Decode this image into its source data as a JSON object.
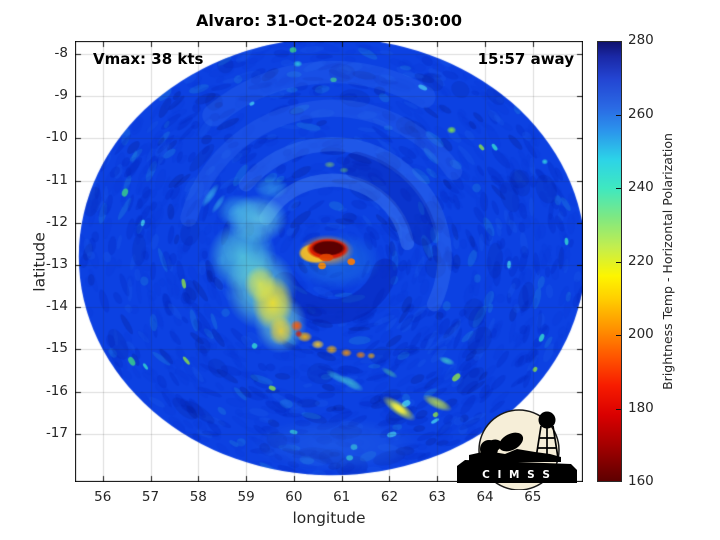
{
  "title": "Alvaro: 31-Oct-2024 05:30:00",
  "annotations": {
    "vmax": "Vmax: 38 kts",
    "time_away": "15:57 away"
  },
  "axes": {
    "xlabel": "longitude",
    "ylabel": "latitude",
    "xticks": [
      56,
      57,
      58,
      59,
      60,
      61,
      62,
      63,
      64,
      65
    ],
    "yticks": [
      -8,
      -9,
      -10,
      -11,
      -12,
      -13,
      -14,
      -15,
      -16,
      -17
    ],
    "xlim": [
      55.42,
      66.05
    ],
    "ylim": [
      -18.14,
      -7.69
    ],
    "grid": true
  },
  "colorbar": {
    "label": "Brightness Temp - Horizontal Polarization",
    "ticks": [
      160,
      180,
      200,
      220,
      240,
      260,
      280
    ],
    "min": 160,
    "max": 280,
    "stops": [
      [
        160,
        "#5e0000"
      ],
      [
        170,
        "#a50000"
      ],
      [
        178,
        "#d90000"
      ],
      [
        186,
        "#f71c00"
      ],
      [
        194,
        "#ff5500"
      ],
      [
        202,
        "#ff9400"
      ],
      [
        210,
        "#ffd000"
      ],
      [
        216,
        "#fdf500"
      ],
      [
        224,
        "#c3ee4e"
      ],
      [
        232,
        "#7fe882"
      ],
      [
        240,
        "#3fe8c0"
      ],
      [
        248,
        "#2cd3e8"
      ],
      [
        256,
        "#2b92ec"
      ],
      [
        262,
        "#2a6ae4"
      ],
      [
        270,
        "#2344d2"
      ],
      [
        276,
        "#1a28a6"
      ],
      [
        280,
        "#10126e"
      ]
    ]
  },
  "logo": {
    "text": "C I M S S"
  },
  "chart_data": {
    "type": "heatmap",
    "title": "Alvaro: 31-Oct-2024 05:30:00",
    "storm_name": "Alvaro",
    "vmax_kts": 38,
    "time_offset_label": "15:57 away",
    "xlabel": "longitude",
    "ylabel": "latitude",
    "colorbar_label": "Brightness Temp - Horizontal Polarization",
    "value_range": [
      160,
      280
    ],
    "legend_position": "right-colorbar",
    "grid": true,
    "swath": {
      "center_lon": 60.8,
      "center_lat": -12.8,
      "rx_deg": 5.3,
      "ry_deg": 5.18,
      "base_color": "#0c41e2",
      "base_tb": 262
    },
    "noise": {
      "seed": 7,
      "count": 1500,
      "bright_count": 26,
      "dark_blob_count": 45
    },
    "arcs": [
      {
        "r": 1.7,
        "w": 0.3,
        "a0": -150,
        "a1": -10,
        "c": "#508cf6",
        "a": 0.4
      },
      {
        "r": 2.5,
        "w": 0.32,
        "a0": -140,
        "a1": 25,
        "c": "#4682f4",
        "a": 0.35
      },
      {
        "r": 3.3,
        "w": 0.38,
        "a0": -165,
        "a1": -35,
        "c": "#3c78f0",
        "a": 0.28
      },
      {
        "r": 1.22,
        "w": 0.55,
        "a0": 15,
        "a1": 150,
        "c": "#0620b0",
        "a": 0.45
      },
      {
        "r": 2.1,
        "w": 0.6,
        "a0": -75,
        "a1": -15,
        "c": "#051ca0",
        "a": 0.3
      },
      {
        "r": 4.1,
        "w": 0.5,
        "a0": -130,
        "a1": -60,
        "c": "#4682f4",
        "a": 0.22
      }
    ],
    "blobs": [
      {
        "lon": 59.23,
        "lat": -11.91,
        "rx": 0.65,
        "ry": 0.58,
        "c": "#74e6e0",
        "a": 0.7,
        "tb": 235
      },
      {
        "lon": 58.92,
        "lat": -12.79,
        "rx": 0.72,
        "ry": 0.82,
        "c": "#62e2dc",
        "a": 0.75,
        "tb": 235
      },
      {
        "lon": 59.31,
        "lat": -13.57,
        "rx": 0.76,
        "ry": 0.96,
        "c": "#74e6d0",
        "a": 0.75,
        "tb": 232
      },
      {
        "lon": 59.72,
        "lat": -14.38,
        "rx": 0.56,
        "ry": 0.72,
        "c": "#84e6c6",
        "a": 0.7,
        "tb": 230
      },
      {
        "lon": 58.83,
        "lat": -11.72,
        "rx": 0.46,
        "ry": 0.4,
        "c": "#55d8e8",
        "a": 0.45
      },
      {
        "lon": 59.52,
        "lat": -11.17,
        "rx": 0.36,
        "ry": 0.28,
        "c": "#55d8e8",
        "a": 0.4
      },
      {
        "lon": 60.9,
        "lat": -12.9,
        "rx": 0.95,
        "ry": 0.7,
        "c": "#2e9ae0",
        "a": 0.4
      },
      {
        "lon": 59.56,
        "lat": -13.9,
        "rx": 0.44,
        "ry": 0.64,
        "c": "#ffe41e",
        "a": 0.85,
        "tb": 208
      },
      {
        "lon": 59.3,
        "lat": -13.45,
        "rx": 0.34,
        "ry": 0.44,
        "c": "#eeea3c",
        "a": 0.75,
        "tb": 212
      },
      {
        "lon": 59.73,
        "lat": -14.56,
        "rx": 0.26,
        "ry": 0.35,
        "c": "#ffd41e",
        "a": 0.8,
        "tb": 206
      },
      {
        "lon": 60.86,
        "lat": -17.25,
        "rx": 1.8,
        "ry": 0.65,
        "c": "#2d6eea",
        "a": 0.45
      },
      {
        "lon": 60.08,
        "lat": -8.23,
        "rx": 0.1,
        "ry": 0.08,
        "c": "#35e0e0",
        "a": 0.8
      },
      {
        "lon": 58.1,
        "lat": -8.16,
        "rx": 0.09,
        "ry": 0.07,
        "c": "#35e0e0",
        "a": 0.6
      },
      {
        "lon": 63.3,
        "lat": -9.8,
        "rx": 0.1,
        "ry": 0.09,
        "c": "#8cf03c",
        "a": 0.9
      },
      {
        "lon": 65.25,
        "lat": -10.55,
        "rx": 0.07,
        "ry": 0.07,
        "c": "#3ae8e0",
        "a": 0.85
      },
      {
        "lon": 60.75,
        "lat": -10.62,
        "rx": 0.12,
        "ry": 0.08,
        "c": "#a0e84c",
        "a": 0.55
      },
      {
        "lon": 61.05,
        "lat": -10.75,
        "rx": 0.1,
        "ry": 0.07,
        "c": "#7ce060",
        "a": 0.5
      },
      {
        "lon": 60.23,
        "lat": -14.7,
        "rx": 0.16,
        "ry": 0.13,
        "c": "#ffb400",
        "a": 0.9,
        "tb": 198
      },
      {
        "lon": 60.5,
        "lat": -14.88,
        "rx": 0.14,
        "ry": 0.11,
        "c": "#ffcf26",
        "a": 0.9
      },
      {
        "lon": 60.79,
        "lat": -15.0,
        "rx": 0.13,
        "ry": 0.11,
        "c": "#ffb400",
        "a": 0.85
      },
      {
        "lon": 61.1,
        "lat": -15.08,
        "rx": 0.12,
        "ry": 0.1,
        "c": "#ff9a00",
        "a": 0.85
      },
      {
        "lon": 61.4,
        "lat": -15.13,
        "rx": 0.11,
        "ry": 0.09,
        "c": "#ff8c00",
        "a": 0.8
      },
      {
        "lon": 61.62,
        "lat": -15.15,
        "rx": 0.09,
        "ry": 0.08,
        "c": "#ffb400",
        "a": 0.75
      },
      {
        "lon": 60.06,
        "lat": -14.44,
        "rx": 0.13,
        "ry": 0.14,
        "c": "#ff5a00",
        "a": 0.95,
        "tb": 190
      },
      {
        "lon": 60.1,
        "lat": -14.63,
        "rx": 0.08,
        "ry": 0.09,
        "c": "#d42000",
        "a": 0.9
      },
      {
        "lon": 60.69,
        "lat": -12.66,
        "rx": 0.58,
        "ry": 0.38,
        "c": "#ff9c1e",
        "a": 0.92,
        "tb": 195
      }
    ],
    "streaks": [
      {
        "lon": 62.2,
        "lat": -16.4,
        "len": 0.42,
        "wid": 0.16,
        "ang": 35,
        "c": "#d8ee3e",
        "a": 0.85
      },
      {
        "lon": 62.2,
        "lat": -16.4,
        "len": 0.22,
        "wid": 0.09,
        "ang": 35,
        "c": "#fff23e",
        "a": 0.9
      },
      {
        "lon": 63.0,
        "lat": -16.27,
        "len": 0.34,
        "wid": 0.14,
        "ang": 25,
        "c": "#c8e83c",
        "a": 0.8
      },
      {
        "lon": 61.2,
        "lat": -15.8,
        "len": 0.3,
        "wid": 0.12,
        "ang": 30,
        "c": "#4ad8d2",
        "a": 0.65
      },
      {
        "lon": 60.9,
        "lat": -15.65,
        "len": 0.26,
        "wid": 0.1,
        "ang": 30,
        "c": "#45d0d8",
        "a": 0.55
      },
      {
        "lon": 63.2,
        "lat": -15.27,
        "len": 0.18,
        "wid": 0.09,
        "ang": 20,
        "c": "#49e0c8",
        "a": 0.7
      },
      {
        "lon": 62.0,
        "lat": -15.55,
        "len": 0.2,
        "wid": 0.08,
        "ang": 30,
        "c": "#55dca0",
        "a": 0.5
      },
      {
        "lon": 58.25,
        "lat": -11.35,
        "len": 0.3,
        "wid": 0.1,
        "ang": -55,
        "c": "#45c8ec",
        "a": 0.6
      },
      {
        "lon": 58.42,
        "lat": -11.55,
        "len": 0.24,
        "wid": 0.08,
        "ang": -55,
        "c": "#45c8ec",
        "a": 0.5
      }
    ],
    "cores": [
      {
        "lon": 60.45,
        "lat": -12.72,
        "rx": 0.36,
        "ry": 0.24,
        "c": "#ffc41e",
        "a": 0.88,
        "tb": 200
      },
      {
        "lon": 60.71,
        "lat": -12.62,
        "rx": 0.45,
        "ry": 0.26,
        "c": "#d81800",
        "a": 0.96,
        "tb": 180
      },
      {
        "lon": 60.72,
        "lat": -12.6,
        "rx": 0.36,
        "ry": 0.185,
        "c": "#5c0000",
        "a": 1.0,
        "tb": 163
      },
      {
        "lon": 60.68,
        "lat": -12.82,
        "rx": 0.16,
        "ry": 0.1,
        "c": "#e04400",
        "a": 0.9
      },
      {
        "lon": 60.59,
        "lat": -13.02,
        "rx": 0.09,
        "ry": 0.09,
        "c": "#ff8c00",
        "a": 0.9
      },
      {
        "lon": 61.2,
        "lat": -12.92,
        "rx": 0.09,
        "ry": 0.09,
        "c": "#ff7a00",
        "a": 0.9
      }
    ]
  }
}
